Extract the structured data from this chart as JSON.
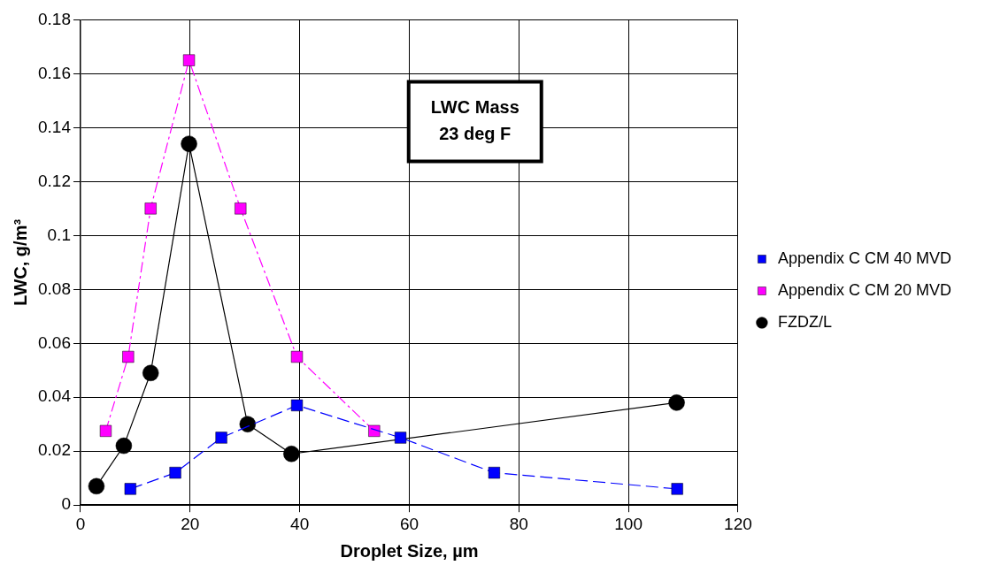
{
  "chart_data": {
    "type": "line",
    "xlabel": "Droplet Size, µm",
    "ylabel": "LWC, g/m³",
    "annotations": [
      "LWC Mass\n23 deg F"
    ],
    "xlim": [
      0,
      120
    ],
    "xticks": [
      0,
      20,
      40,
      60,
      80,
      100,
      120
    ],
    "ylim": [
      0,
      0.18
    ],
    "yticks": [
      0,
      0.02,
      0.04,
      0.06,
      0.08,
      0.1,
      0.12,
      0.14,
      0.16,
      0.18
    ],
    "grid": true,
    "legend": "right",
    "series": [
      {
        "name": "Appendix C CM 40 MVD",
        "color": "#0000ff",
        "marker": "square",
        "line_style": "dashed",
        "x": [
          9.1,
          17.3,
          25.7,
          39.5,
          58.4,
          75.5,
          108.9
        ],
        "values": [
          0.006,
          0.012,
          0.025,
          0.037,
          0.025,
          0.012,
          0.006
        ]
      },
      {
        "name": "Appendix C CM 20 MVD",
        "color": "#ff00ff",
        "marker": "square",
        "line_style": "dashdot",
        "x": [
          4.6,
          8.7,
          12.8,
          19.8,
          29.2,
          39.5,
          53.6
        ],
        "values": [
          0.0275,
          0.055,
          0.11,
          0.165,
          0.11,
          0.055,
          0.0275
        ]
      },
      {
        "name": "FZDZ/L",
        "color": "#000000",
        "marker": "circle",
        "line_style": "solid",
        "x": [
          2.9,
          7.9,
          12.8,
          19.8,
          30.5,
          38.5,
          108.8
        ],
        "values": [
          0.007,
          0.022,
          0.049,
          0.134,
          0.03,
          0.019,
          0.038
        ]
      }
    ]
  }
}
